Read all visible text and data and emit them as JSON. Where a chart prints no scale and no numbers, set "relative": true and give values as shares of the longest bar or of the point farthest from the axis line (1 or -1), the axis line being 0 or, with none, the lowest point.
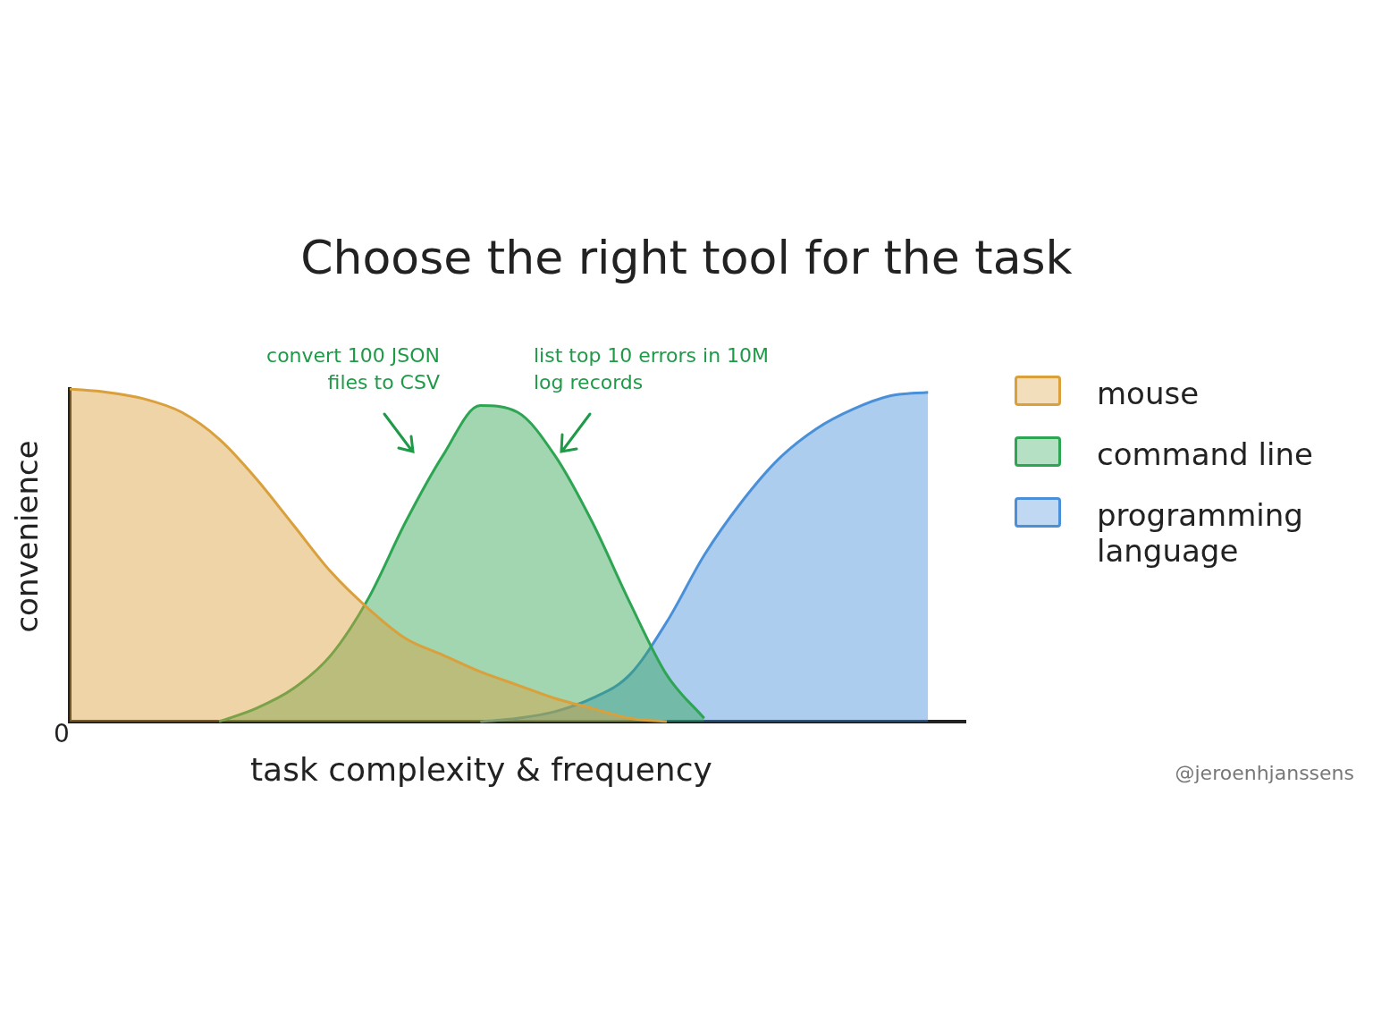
{
  "chart_data": {
    "type": "area",
    "title": "Choose the right tool for the task",
    "xlabel": "task complexity & frequency",
    "ylabel": "convenience",
    "relative": true,
    "legend": "right",
    "categories": [
      null,
      null,
      null,
      null,
      null,
      null,
      null,
      null,
      null,
      null,
      null,
      null,
      null,
      null,
      null,
      null,
      null,
      null,
      null,
      null,
      null,
      null,
      null,
      null,
      null
    ],
    "series": [
      {
        "name": "mouse",
        "color": "#d9a03b",
        "values": [
          1,
          0.99,
          0.97,
          0.93,
          0.85,
          0.73,
          0.59,
          0.45,
          0.34,
          0.25,
          0.2,
          0.15,
          0.11,
          0.07,
          0.04,
          0.01,
          0,
          null,
          null,
          null,
          null,
          null,
          null,
          null,
          null
        ]
      },
      {
        "name": "command line",
        "color": "#2ea552",
        "values": [
          null,
          null,
          null,
          null,
          0,
          0.04,
          0.1,
          0.2,
          0.37,
          0.6,
          0.8,
          0.95,
          0.93,
          0.8,
          0.6,
          0.36,
          0.14,
          0.01,
          null,
          null,
          null,
          null,
          null,
          null,
          null
        ]
      },
      {
        "name": "programming language",
        "color": "#4a90d9",
        "values": [
          null,
          null,
          null,
          null,
          null,
          null,
          null,
          null,
          null,
          null,
          null,
          0,
          0.01,
          0.03,
          0.07,
          0.14,
          0.3,
          0.5,
          0.66,
          0.79,
          0.88,
          0.94,
          0.98,
          0.99,
          null
        ]
      }
    ],
    "annotations": [
      "convert 100 JSON files to CSV",
      "list top 10 errors in 10M log records",
      "0",
      "@jeroenhjanssens"
    ]
  }
}
